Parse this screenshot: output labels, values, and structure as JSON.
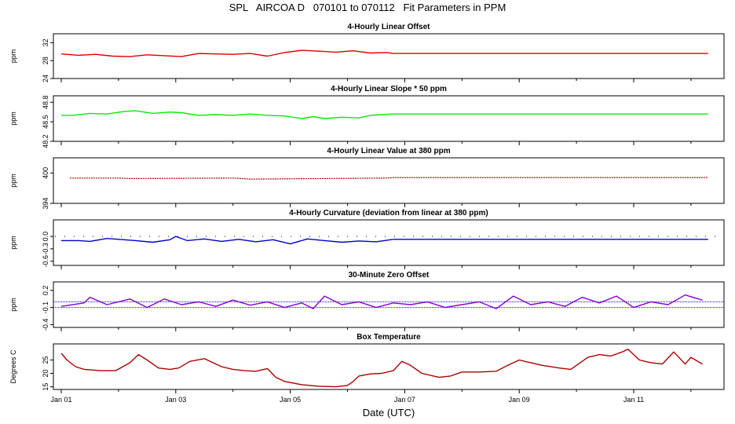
{
  "figure": {
    "title": "SPL   AIRCOA D   070101 to 070112   Fit Parameters in PPM",
    "xlabel": "Date (UTC)",
    "x_ticks": [
      "Jan 01",
      "Jan 03",
      "Jan 05",
      "Jan 07",
      "Jan 09",
      "Jan 11"
    ]
  },
  "chart_data": [
    {
      "type": "line",
      "title": "4-Hourly Linear Offset",
      "ylabel": "ppm",
      "ylim": [
        24,
        34
      ],
      "yticks": [
        "24",
        "28",
        "32"
      ],
      "ytick_values": [
        24,
        28,
        32
      ],
      "color": "#dd0000",
      "series": [
        {
          "x": [
            0.0,
            0.3,
            0.6,
            0.9,
            1.2,
            1.5,
            1.8,
            2.1,
            2.4,
            2.7,
            3.0,
            3.3,
            3.6,
            3.9,
            4.2,
            4.5,
            4.8,
            5.1,
            5.4,
            5.7,
            5.8
          ],
          "values": [
            29.5,
            29.2,
            29.4,
            29.0,
            28.9,
            29.3,
            29.1,
            28.9,
            29.6,
            29.5,
            29.4,
            29.6,
            29.0,
            29.8,
            30.3,
            30.1,
            29.9,
            30.2,
            29.7,
            29.8,
            29.6
          ]
        },
        {
          "x": [
            5.8,
            11.3
          ],
          "values": [
            29.6,
            29.6
          ]
        }
      ]
    },
    {
      "type": "line",
      "title": "4-Hourly Linear Slope * 50 ppm",
      "ylabel": "ppm",
      "ylim": [
        48.2,
        48.9
      ],
      "yticks": [
        "48.2",
        "48.5",
        "48.8"
      ],
      "ytick_values": [
        48.2,
        48.5,
        48.8
      ],
      "color": "#00ee00",
      "series": [
        {
          "x": [
            0.0,
            0.2,
            0.5,
            0.8,
            1.1,
            1.3,
            1.6,
            1.9,
            2.1,
            2.4,
            2.7,
            3.0,
            3.3,
            3.6,
            3.9,
            4.2,
            4.4,
            4.6,
            4.9,
            5.2,
            5.4,
            5.6,
            5.8
          ],
          "values": [
            48.6,
            48.6,
            48.63,
            48.62,
            48.66,
            48.67,
            48.63,
            48.65,
            48.64,
            48.6,
            48.61,
            48.6,
            48.62,
            48.6,
            48.59,
            48.55,
            48.58,
            48.55,
            48.57,
            48.56,
            48.6,
            48.61,
            48.62
          ]
        },
        {
          "x": [
            5.8,
            11.3
          ],
          "values": [
            48.62,
            48.62
          ]
        }
      ]
    },
    {
      "type": "line",
      "title": "4-Hourly Linear Value at 380 ppm",
      "ylabel": "ppm",
      "ylim": [
        394,
        403
      ],
      "yticks": [
        "394",
        "400"
      ],
      "ytick_values": [
        394,
        400
      ],
      "color": "#aa0000",
      "series": [
        {
          "x": [
            0.15,
            1.0,
            1.2,
            3.0,
            3.3,
            5.7,
            5.8,
            11.3
          ],
          "values": [
            399.0,
            399.0,
            398.9,
            399.0,
            398.8,
            399.0,
            399.1,
            399.1
          ]
        }
      ]
    },
    {
      "type": "line",
      "title": "4-Hourly Curvature (deviation from linear at 380 ppm)",
      "ylabel": "ppm",
      "ylim": [
        -0.7,
        0.4
      ],
      "yticks": [
        "-0.6",
        "-0.3",
        "0.0"
      ],
      "ytick_values": [
        -0.6,
        -0.3,
        0.0
      ],
      "color": "#0000cc",
      "series": [
        {
          "x": [
            0.0,
            0.3,
            0.5,
            0.8,
            1.0,
            1.3,
            1.6,
            1.9,
            2.0,
            2.2,
            2.5,
            2.8,
            3.1,
            3.4,
            3.7,
            4.0,
            4.3,
            4.6,
            4.9,
            5.2,
            5.5,
            5.8
          ],
          "values": [
            -0.1,
            -0.1,
            -0.12,
            -0.05,
            -0.07,
            -0.1,
            -0.14,
            -0.08,
            0.0,
            -0.1,
            -0.06,
            -0.12,
            -0.07,
            -0.13,
            -0.08,
            -0.18,
            -0.06,
            -0.1,
            -0.14,
            -0.11,
            -0.13,
            -0.07
          ]
        },
        {
          "x": [
            5.8,
            11.3
          ],
          "values": [
            -0.07,
            -0.07
          ]
        }
      ]
    },
    {
      "type": "line",
      "title": "30-Minute Zero Offset",
      "ylabel": "ppm",
      "ylim": [
        -0.45,
        0.35
      ],
      "yticks": [
        "-0.4",
        "-0.1",
        "0.2"
      ],
      "ytick_values": [
        -0.4,
        -0.1,
        0.2
      ],
      "color": "#8800cc",
      "series": [
        {
          "x": [
            0.0,
            0.4,
            0.5,
            0.8,
            1.2,
            1.5,
            1.8,
            2.1,
            2.4,
            2.7,
            3.0,
            3.3,
            3.6,
            3.9,
            4.2,
            4.4,
            4.6,
            4.9,
            5.2,
            5.5,
            5.8,
            6.1,
            6.4,
            6.7,
            7.0,
            7.3,
            7.6,
            7.9,
            8.2,
            8.5,
            8.8,
            9.1,
            9.4,
            9.7,
            10.0,
            10.3,
            10.6,
            10.9,
            11.2
          ],
          "values": [
            -0.08,
            -0.02,
            0.08,
            -0.05,
            0.05,
            -0.1,
            0.05,
            -0.05,
            0.0,
            -0.08,
            0.03,
            -0.06,
            0.0,
            -0.1,
            -0.02,
            -0.12,
            0.1,
            -0.05,
            0.0,
            -0.1,
            -0.02,
            -0.05,
            0.0,
            -0.1,
            -0.05,
            0.0,
            -0.12,
            0.1,
            -0.05,
            0.0,
            -0.08,
            0.08,
            -0.02,
            0.1,
            -0.1,
            0.0,
            -0.05,
            0.12,
            0.03
          ]
        }
      ]
    },
    {
      "type": "line",
      "title": "Box Temperature",
      "ylabel": "Degrees C",
      "ylim": [
        14,
        31
      ],
      "yticks": [
        "15",
        "20",
        "25"
      ],
      "ytick_values": [
        15,
        20,
        25
      ],
      "color": "#aa0000",
      "series": [
        {
          "x": [
            0.0,
            0.1,
            0.25,
            0.4,
            0.7,
            0.95,
            1.2,
            1.35,
            1.5,
            1.7,
            1.9,
            2.05,
            2.25,
            2.5,
            2.8,
            3.0,
            3.2,
            3.4,
            3.6,
            3.75,
            3.9,
            4.2,
            4.5,
            4.8,
            5.0,
            5.1,
            5.2,
            5.4,
            5.6,
            5.8,
            5.95,
            6.1,
            6.3,
            6.6,
            6.8,
            7.0,
            7.3,
            7.6,
            7.8,
            8.0,
            8.2,
            8.4,
            8.7,
            8.9,
            9.0,
            9.2,
            9.4,
            9.6,
            9.8,
            9.9,
            10.1,
            10.3,
            10.5,
            10.7,
            10.9,
            11.0,
            11.2
          ],
          "values": [
            27.5,
            25.0,
            22.5,
            21.5,
            21.0,
            21.0,
            24.0,
            27.0,
            25.0,
            22.0,
            21.5,
            22.0,
            24.5,
            25.5,
            22.5,
            21.5,
            21.0,
            20.8,
            21.8,
            18.5,
            17.0,
            15.8,
            15.2,
            15.0,
            15.5,
            17.0,
            19.0,
            19.8,
            20.0,
            21.0,
            24.5,
            23.0,
            20.0,
            18.5,
            19.0,
            20.5,
            20.5,
            20.8,
            23.0,
            25.0,
            24.0,
            23.0,
            22.0,
            21.5,
            23.0,
            26.0,
            27.0,
            26.5,
            28.0,
            29.0,
            25.0,
            24.0,
            23.5,
            28.0,
            23.5,
            26.0,
            23.5
          ]
        }
      ]
    }
  ]
}
